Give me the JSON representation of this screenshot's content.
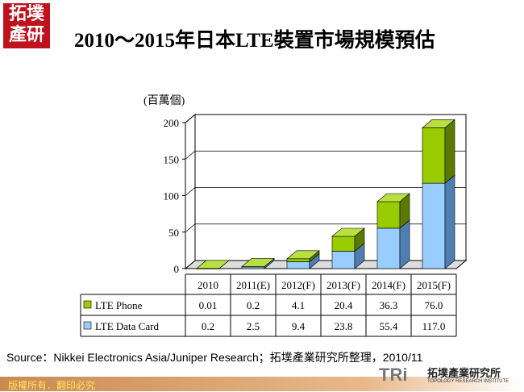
{
  "logo": {
    "text": "拓墣產研"
  },
  "title": "2010～2015年日本LTE裝置市場規模預估",
  "source": "Source：Nikkei Electronics Asia/Juniper Research；拓墣產業研究所整理，2010/11",
  "footer": {
    "copyright": "版權所有．翻印必究",
    "org_abbr": "TRi",
    "org_cn": "拓墣產業研究所",
    "org_en": "TOPOLOGY RESEARCH INSTITUTE"
  },
  "chart_data": {
    "type": "bar",
    "stacked": true,
    "three_d": true,
    "unit_label": "(百萬個)",
    "categories": [
      "2010",
      "2011(E)",
      "2012(F)",
      "2013(F)",
      "2014(F)",
      "2015(F)"
    ],
    "series": [
      {
        "name": "LTE Data Card",
        "values": [
          0.2,
          2.5,
          9.4,
          23.8,
          55.4,
          117.0
        ],
        "value_labels": [
          "0.2",
          "2.5",
          "9.4",
          "23.8",
          "55.4",
          "117.0"
        ],
        "color": "#99ccff"
      },
      {
        "name": "LTE Phone",
        "values": [
          0.01,
          0.2,
          4.1,
          20.4,
          36.3,
          76.0
        ],
        "value_labels": [
          "0.01",
          "0.2",
          "4.1",
          "20.4",
          "36.3",
          "76.0"
        ],
        "color": "#99cc00"
      }
    ],
    "ylim": [
      0,
      200
    ],
    "yticks": [
      "0",
      "50",
      "100",
      "150",
      "200"
    ],
    "grid": true,
    "legend": "data-table"
  }
}
